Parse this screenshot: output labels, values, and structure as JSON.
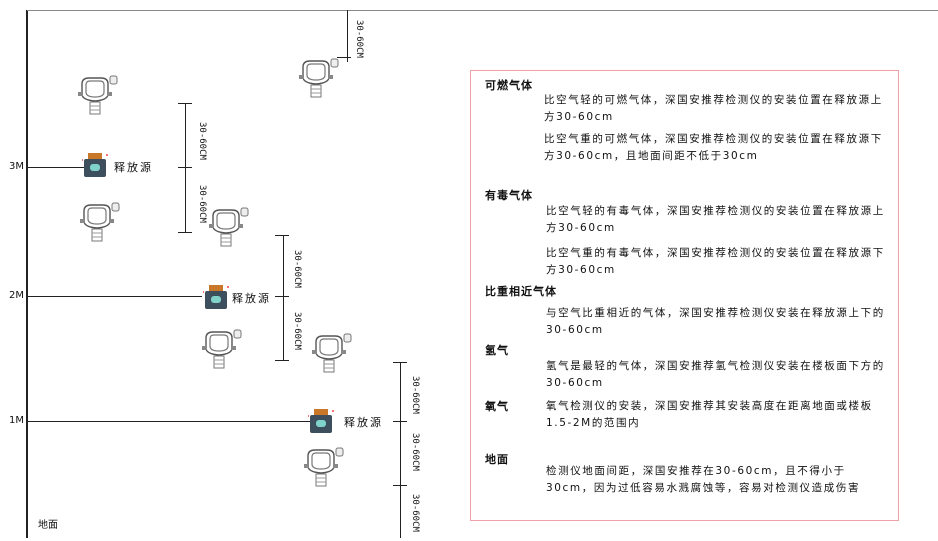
{
  "levels": [
    "3M",
    "2M",
    "1M"
  ],
  "ground_label": "地面",
  "source_label": "释放源",
  "dim_label": "30-60CM",
  "panel": {
    "sections": [
      {
        "title": "可燃气体",
        "paras": [
          "比空气轻的可燃气体，深国安推荐检测仪的安装位置在释放源上方30-60cm",
          "比空气重的可燃气体，深国安推荐检测仪的安装位置在释放源下方30-60cm，且地面间距不低于30cm"
        ]
      },
      {
        "title": "有毒气体",
        "paras": [
          "比空气轻的有毒气体，深国安推荐检测仪的安装位置在释放源上方30-60cm",
          "比空气重的有毒气体，深国安推荐检测仪的安装位置在释放源下方30-60cm"
        ]
      },
      {
        "title": "比重相近气体",
        "paras": [
          "与空气比重相近的气体，深国安推荐检测仪安装在释放源上下的30-60cm"
        ]
      },
      {
        "title": "氢气",
        "paras": [
          "氢气是最轻的气体，深国安推荐氢气检测仪安装在楼板面下方的30-60cm"
        ]
      },
      {
        "title": "氧气",
        "paras": [
          "氧气检测仪的安装，深国安推荐其安装高度在距离地面或楼板1.5-2M的范围内"
        ]
      },
      {
        "title": "地面",
        "paras": [
          "检测仪地面间距，深国安推荐在30-60cm，且不得小于30cm，因为过低容易水溅腐蚀等，容易对检测仪造成伤害"
        ]
      }
    ]
  },
  "colors": {
    "panel_border": "#f0a0a8",
    "source_body": "#3d4f5c",
    "source_cap": "#c9782a"
  }
}
